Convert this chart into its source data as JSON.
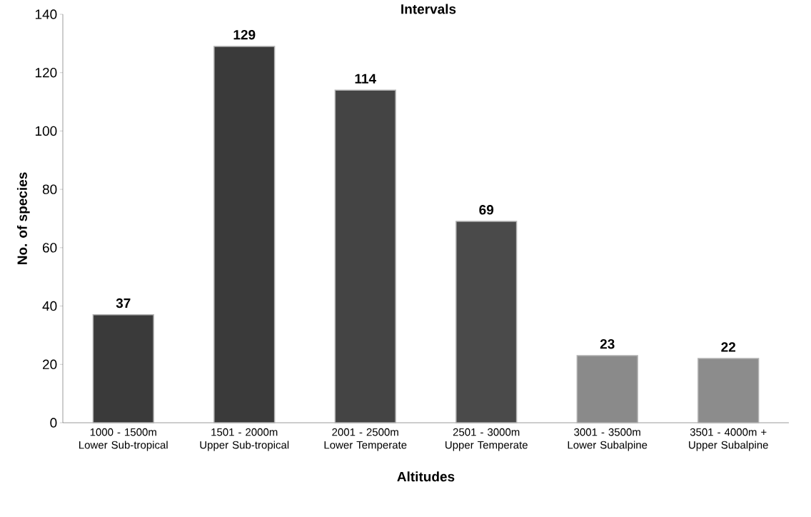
{
  "chart_data": {
    "type": "bar",
    "title": "Intervals",
    "xlabel": "Altitudes",
    "ylabel": "No. of species",
    "categories": [
      "1000 - 1500m Lower Sub-tropical",
      "1501 - 2000m Upper Sub-tropical",
      "2001 - 2500m Lower Temperate",
      "2501 - 3000m Upper Temperate",
      "3001 - 3500m Lower Subalpine",
      "3501 - 4000m + Upper Subalpine"
    ],
    "values": [
      37,
      129,
      114,
      69,
      23,
      22
    ],
    "colors": [
      "#3a3a3a",
      "#3a3a3a",
      "#444444",
      "#4a4a4a",
      "#8a8a8a",
      "#8c8c8c"
    ],
    "ylim": [
      0,
      140
    ],
    "yticks": [
      0,
      20,
      40,
      60,
      80,
      100,
      120,
      140
    ],
    "data_labels": true
  }
}
